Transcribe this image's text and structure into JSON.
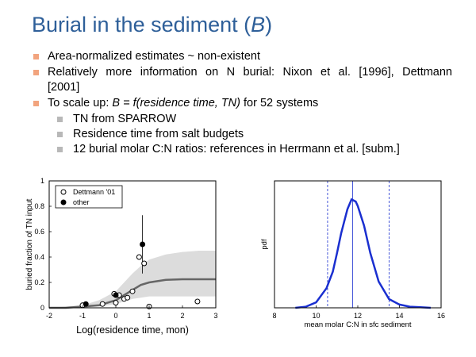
{
  "slide": {
    "title_text": "Burial in the sediment (",
    "title_var": "B",
    "title_close": ")",
    "bullet1": "Area-normalized estimates ~ non-existent",
    "bullet2_line1": "Relatively more information on N burial: Nixon et al. [1996],   Dettmann",
    "bullet2_line2": "[2001]",
    "bullet3_prefix": "To scale up: ",
    "bullet3_formula": "B = f(residence time, TN)",
    "bullet3_suffix": " for 52 systems",
    "sub1": "TN from SPARROW",
    "sub2": "Residence time from salt budgets",
    "sub3": "12 burial molar C:N ratios: references in Herrmann et al. [subm.]"
  },
  "chart_data": [
    {
      "type": "scatter",
      "xlabel": "Log(residence time, mon)",
      "ylabel": "buried fraction of TN input",
      "xlim": [
        -2,
        3
      ],
      "ylim": [
        0,
        1
      ],
      "xticks": [
        "-2",
        "-1",
        "0",
        "1",
        "2",
        "3"
      ],
      "yticks": [
        "0",
        "0.2",
        "0.4",
        "0.6",
        "0.8",
        "1"
      ],
      "legend_position": "top-left",
      "series": [
        {
          "name": "Dettmann '01",
          "marker": "open-circle",
          "points": [
            [
              -1.0,
              0.02
            ],
            [
              -0.4,
              0.03
            ],
            [
              -0.05,
              0.11
            ],
            [
              0.0,
              0.04
            ],
            [
              0.1,
              0.1
            ],
            [
              0.25,
              0.07
            ],
            [
              0.35,
              0.08
            ],
            [
              0.5,
              0.13
            ],
            [
              0.7,
              0.4
            ],
            [
              0.85,
              0.35
            ],
            [
              1.0,
              0.01
            ],
            [
              2.45,
              0.05
            ]
          ]
        },
        {
          "name": "other",
          "marker": "filled-circle",
          "points": [
            [
              -0.9,
              0.03
            ],
            [
              0.0,
              0.1
            ],
            [
              0.8,
              0.5
            ]
          ],
          "error_bar": {
            "x": 0.8,
            "low": 0.27,
            "high": 0.73
          }
        }
      ],
      "fit_curve": {
        "x": [
          -2,
          -1.5,
          -1,
          -0.5,
          0,
          0.25,
          0.5,
          0.75,
          1,
          1.5,
          2,
          2.5,
          3
        ],
        "y": [
          0.0,
          0.0,
          0.01,
          0.02,
          0.06,
          0.1,
          0.14,
          0.18,
          0.2,
          0.22,
          0.225,
          0.225,
          0.225
        ]
      },
      "uncertainty_band": {
        "x": [
          -2,
          -1.5,
          -1,
          -0.5,
          0,
          0.25,
          0.5,
          0.75,
          1,
          1.5,
          2,
          2.5,
          3
        ],
        "lower": [
          0,
          0,
          0,
          0.01,
          0.03,
          0.05,
          0.07,
          0.08,
          0.09,
          0.09,
          0.09,
          0.09,
          0.09
        ],
        "upper": [
          0,
          0.01,
          0.02,
          0.06,
          0.13,
          0.2,
          0.27,
          0.33,
          0.38,
          0.42,
          0.44,
          0.45,
          0.45
        ]
      }
    },
    {
      "type": "line",
      "xlabel": "mean molar C:N in sfc sediment",
      "ylabel": "pdf",
      "xlim": [
        8,
        16
      ],
      "xticks": [
        "8",
        "10",
        "12",
        "14",
        "16"
      ],
      "density": {
        "x": [
          9.0,
          9.5,
          10.0,
          10.5,
          10.8,
          11.0,
          11.2,
          11.5,
          11.7,
          11.9,
          12.0,
          12.3,
          12.6,
          13.0,
          13.5,
          14.0,
          14.5,
          15.0,
          15.5
        ],
        "y": [
          0.0,
          0.01,
          0.05,
          0.18,
          0.33,
          0.5,
          0.68,
          0.9,
          0.99,
          0.97,
          0.93,
          0.75,
          0.5,
          0.24,
          0.08,
          0.03,
          0.01,
          0.005,
          0.0
        ]
      },
      "vlines": [
        {
          "x": 11.75,
          "style": "solid"
        },
        {
          "x": 10.55,
          "style": "dashed"
        },
        {
          "x": 13.5,
          "style": "dashed"
        }
      ]
    }
  ]
}
